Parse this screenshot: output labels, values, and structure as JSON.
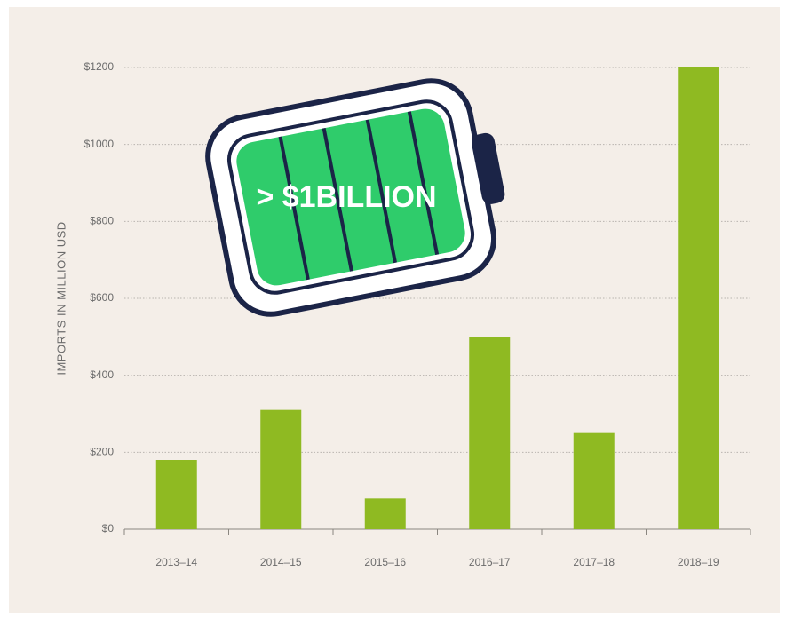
{
  "chart_data": {
    "type": "bar",
    "y_label": "IMPORTS IN MILLION USD",
    "annotation": "> $1BILLION",
    "categories": [
      "2013–14",
      "2014–15",
      "2015–16",
      "2016–17",
      "2017–18",
      "2018–19"
    ],
    "values": [
      180,
      310,
      80,
      500,
      250,
      1200
    ],
    "color": "#8fba22",
    "ylim": [
      0,
      1200
    ],
    "yticks": [
      {
        "value": 0,
        "label": "$0"
      },
      {
        "value": 200,
        "label": "$200"
      },
      {
        "value": 400,
        "label": "$400"
      },
      {
        "value": 600,
        "label": "$600"
      },
      {
        "value": 800,
        "label": "$800"
      },
      {
        "value": 1000,
        "label": "$1000"
      },
      {
        "value": 1200,
        "label": "$1200"
      }
    ],
    "grid": true
  }
}
